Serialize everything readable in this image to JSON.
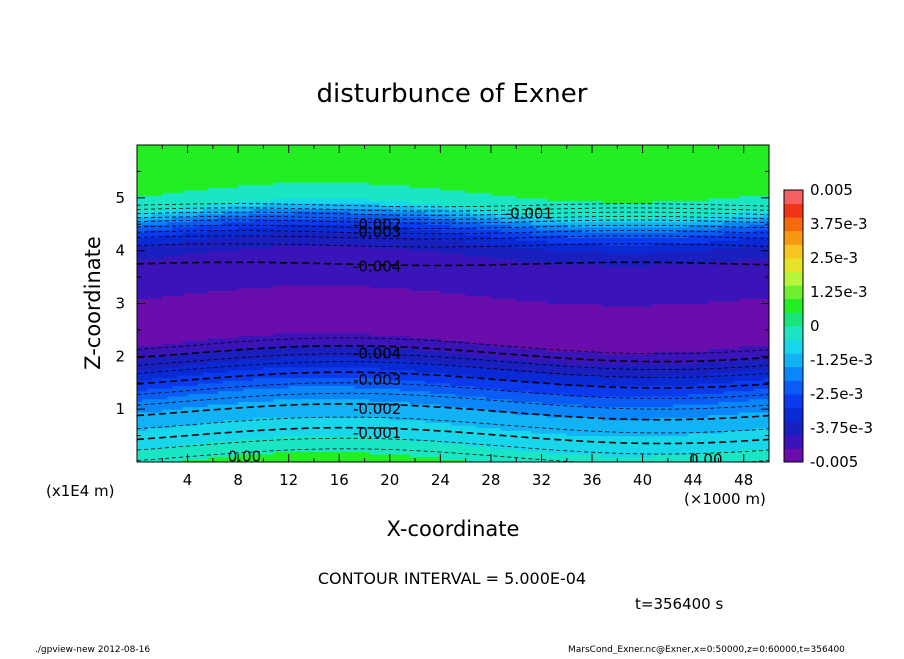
{
  "chart_data": {
    "type": "heatmap",
    "title": "disturbunce of Exner",
    "xlabel": "X-coordinate",
    "ylabel": "Z-coordinate",
    "x_unit": "(×1000 m)",
    "y_unit": "(x1E4 m)",
    "xlim": [
      0,
      50
    ],
    "ylim": [
      0,
      6
    ],
    "x_ticks": [
      "4",
      "8",
      "12",
      "16",
      "20",
      "24",
      "28",
      "32",
      "36",
      "40",
      "44",
      "48"
    ],
    "y_ticks": [
      "1",
      "2",
      "3",
      "4",
      "5"
    ],
    "contour_interval_label": "CONTOUR INTERVAL = 5.000E-04",
    "time_label": "t=356400 s",
    "footer_left": "./gpview-new  2012-08-16",
    "footer_right": "MarsCond_Exner.nc@Exner,x=0:50000,z=0:60000,t=356400",
    "colorbar": {
      "min": -0.005,
      "max": 0.005,
      "labels": [
        "0.005",
        "3.75e-3",
        "2.5e-3",
        "1.25e-3",
        "0",
        "-1.25e-3",
        "-2.5e-3",
        "-3.75e-3",
        "-0.005"
      ]
    },
    "profile_z": [
      0.0,
      0.3,
      0.6,
      0.9,
      1.2,
      1.5,
      1.8,
      2.1,
      2.4,
      2.7,
      3.0,
      3.3,
      3.6,
      3.9,
      4.2,
      4.5,
      4.8,
      5.1,
      6.0
    ],
    "profile_value": [
      0.0,
      -0.0005,
      -0.0009,
      -0.0013,
      -0.0019,
      -0.0027,
      -0.0035,
      -0.0042,
      -0.0048,
      -0.0048,
      -0.0046,
      -0.0044,
      -0.0043,
      -0.004,
      -0.0034,
      -0.0022,
      -0.0005,
      0.0,
      0.0
    ],
    "contour_labels": [
      {
        "text": "0.00",
        "x": 8.5,
        "z": 0.1
      },
      {
        "text": "0.00",
        "x": 45,
        "z": 0.05
      },
      {
        "text": "-0.001",
        "x": 19,
        "z": 0.55
      },
      {
        "text": "-0.002",
        "x": 19,
        "z": 1.0
      },
      {
        "text": "-0.003",
        "x": 19,
        "z": 1.55
      },
      {
        "text": "-0.004",
        "x": 19,
        "z": 2.05
      },
      {
        "text": "-0.004",
        "x": 19,
        "z": 3.7
      },
      {
        "text": "-0.003",
        "x": 19,
        "z": 4.35
      },
      {
        "text": "-0.002",
        "x": 19,
        "z": 4.5
      },
      {
        "text": "-0.001",
        "x": 31,
        "z": 4.7
      }
    ]
  }
}
